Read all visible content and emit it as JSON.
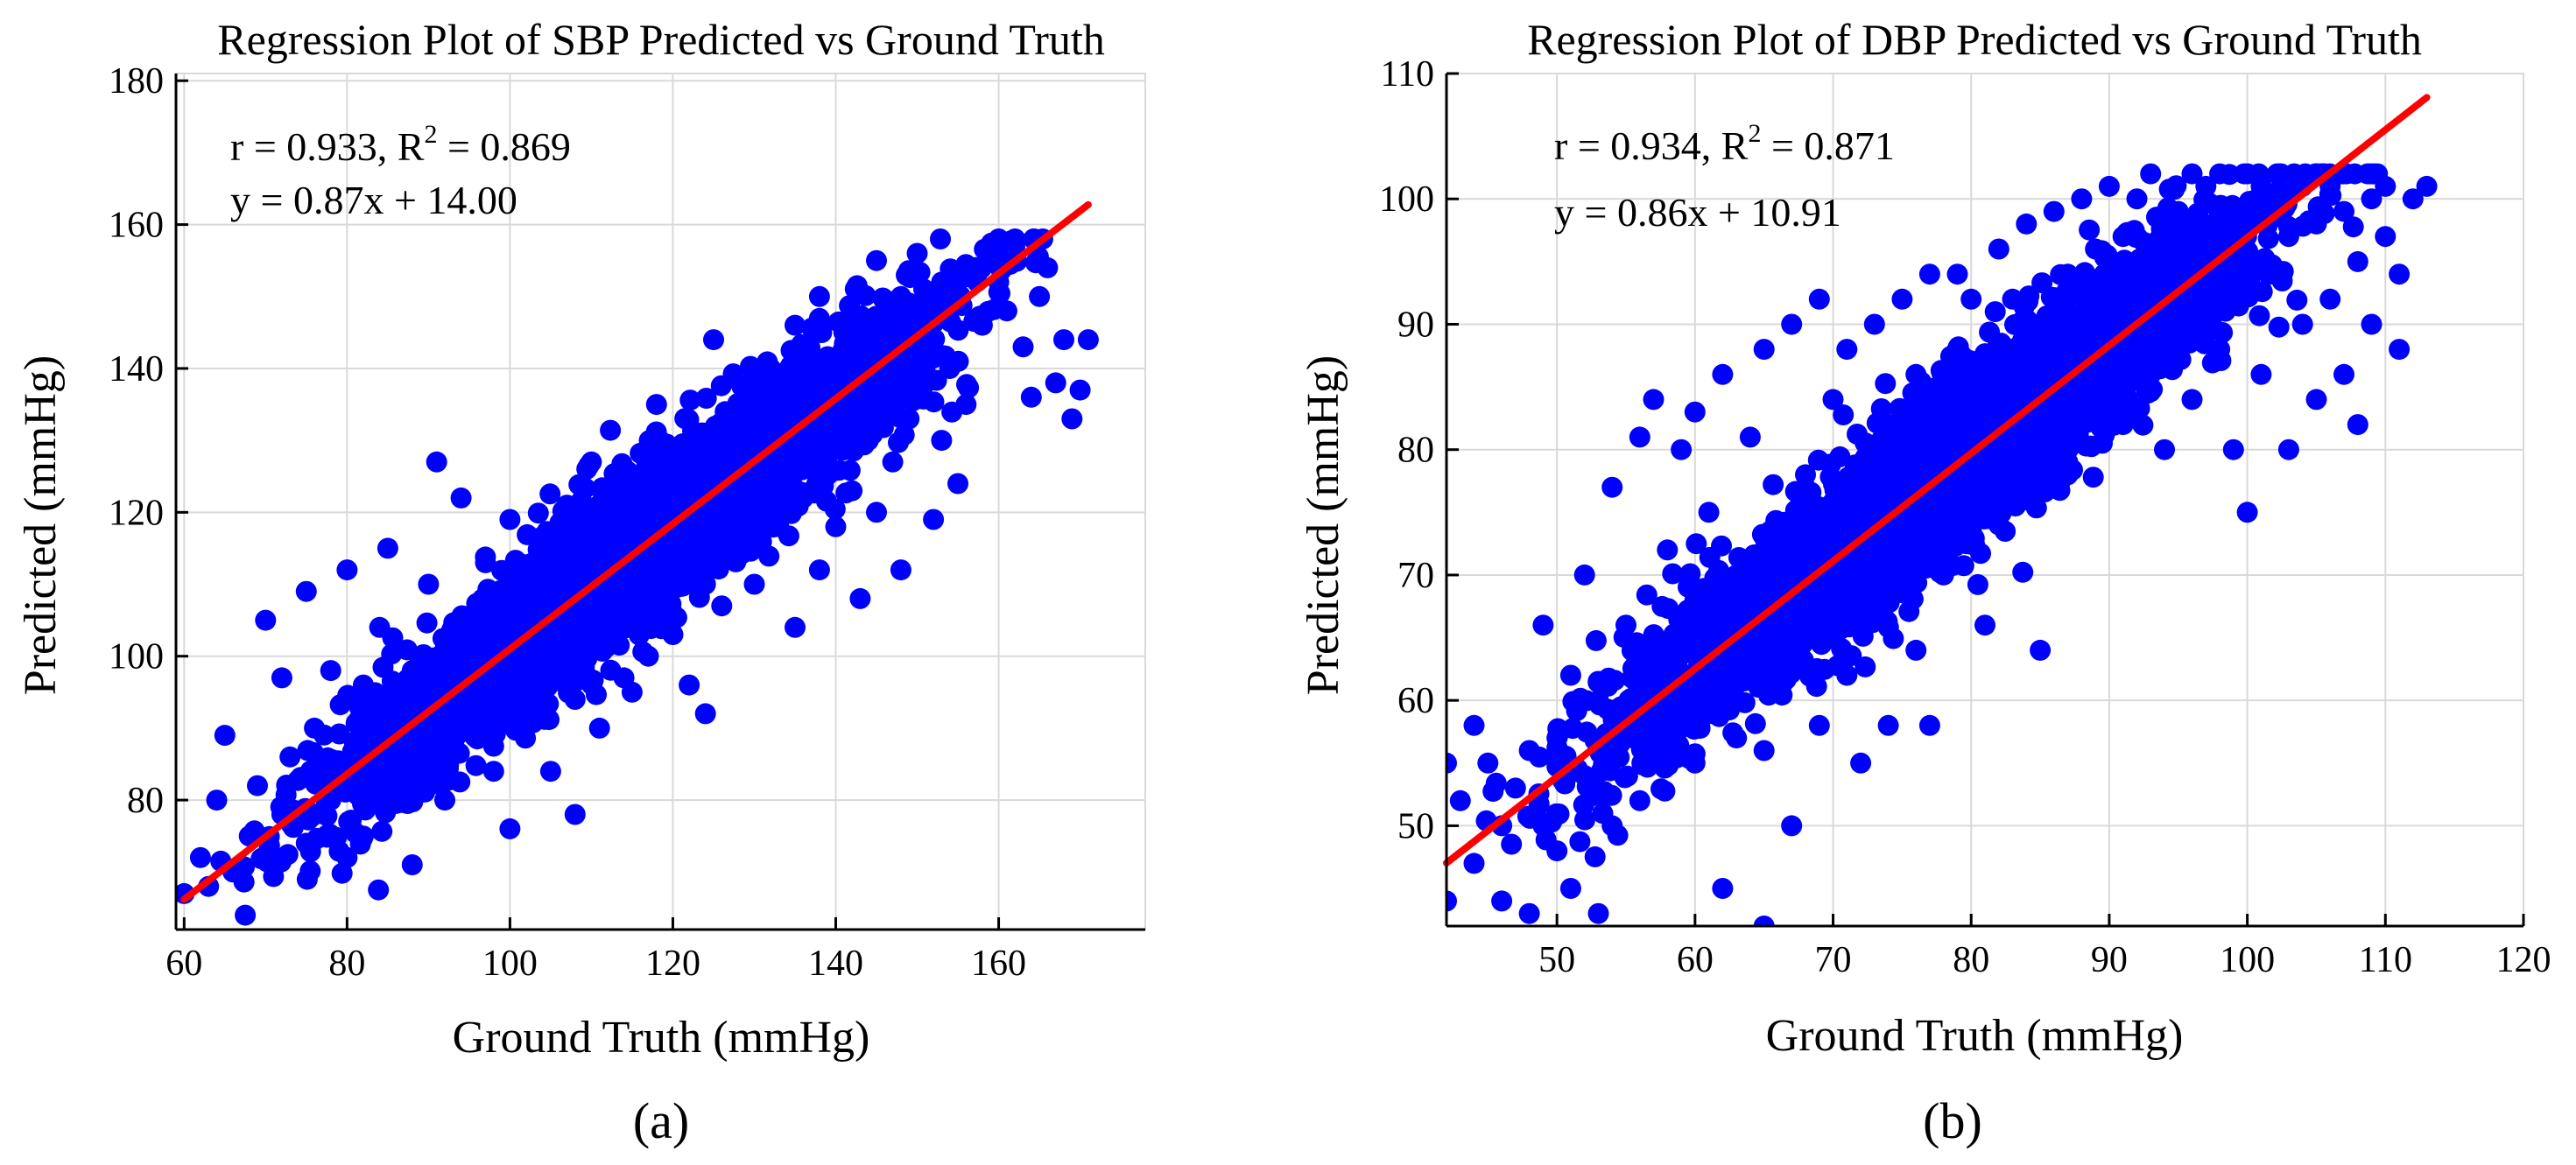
{
  "colors": {
    "points": "#0000ff",
    "fit_line": "#ff0000",
    "grid": "#d9d9d9",
    "axis": "#000000"
  },
  "chart_data": [
    {
      "type": "scatter",
      "panel_label": "(a)",
      "title": "Regression Plot of SBP Predicted vs Ground Truth",
      "xlabel": "Ground Truth (mmHg)",
      "ylabel": "Predicted (mmHg)",
      "xlim": [
        59,
        178
      ],
      "ylim": [
        62,
        181
      ],
      "xticks": [
        60,
        80,
        100,
        120,
        140,
        160
      ],
      "yticks": [
        80,
        100,
        120,
        140,
        160,
        180
      ],
      "grid": true,
      "stats": {
        "r_text": "r = 0.933, R",
        "r2_sup": "2",
        "r2_text": " = 0.869",
        "equation": "y = 0.87x + 14.00"
      },
      "fit": {
        "slope": 0.87,
        "intercept": 14.0,
        "x_range": [
          60,
          171
        ]
      },
      "point_cloud": {
        "x_range": [
          60,
          171
        ],
        "y_range": [
          64,
          158
        ],
        "approx_point_count": 15000,
        "note": "dense point cloud along the fit line"
      },
      "points": [
        [
          60,
          67
        ],
        [
          62,
          72
        ],
        [
          63,
          68
        ],
        [
          64,
          80
        ],
        [
          65,
          89
        ],
        [
          66,
          70
        ],
        [
          68,
          75
        ],
        [
          69,
          82
        ],
        [
          70,
          105
        ],
        [
          70,
          72
        ],
        [
          72,
          97
        ],
        [
          72,
          78
        ],
        [
          73,
          86
        ],
        [
          75,
          109
        ],
        [
          75,
          74
        ],
        [
          76,
          90
        ],
        [
          78,
          80
        ],
        [
          78,
          98
        ],
        [
          80,
          85
        ],
        [
          80,
          112
        ],
        [
          80,
          72
        ],
        [
          82,
          96
        ],
        [
          82,
          75
        ],
        [
          84,
          104
        ],
        [
          85,
          115
        ],
        [
          85,
          82
        ],
        [
          86,
          91
        ],
        [
          88,
          98
        ],
        [
          88,
          71
        ],
        [
          90,
          110
        ],
        [
          90,
          88
        ],
        [
          91,
          127
        ],
        [
          92,
          95
        ],
        [
          92,
          80
        ],
        [
          94,
          104
        ],
        [
          94,
          122
        ],
        [
          95,
          90
        ],
        [
          96,
          100
        ],
        [
          97,
          113
        ],
        [
          98,
          84
        ],
        [
          99,
          96
        ],
        [
          100,
          110
        ],
        [
          100,
          119
        ],
        [
          100,
          76
        ],
        [
          102,
          92
        ],
        [
          103,
          104
        ],
        [
          104,
          116
        ],
        [
          105,
          84
        ],
        [
          106,
          100
        ],
        [
          107,
          121
        ],
        [
          108,
          94
        ],
        [
          108,
          78
        ],
        [
          110,
          108
        ],
        [
          110,
          127
        ],
        [
          111,
          90
        ],
        [
          112,
          104
        ],
        [
          113,
          116
        ],
        [
          114,
          97
        ],
        [
          115,
          95
        ],
        [
          116,
          110
        ],
        [
          117,
          100
        ],
        [
          117,
          123
        ],
        [
          118,
          135
        ],
        [
          119,
          107
        ],
        [
          120,
          118
        ],
        [
          120,
          103
        ],
        [
          121,
          124
        ],
        [
          122,
          96
        ],
        [
          122,
          112
        ],
        [
          123,
          130
        ],
        [
          124,
          92
        ],
        [
          124,
          110
        ],
        [
          125,
          144
        ],
        [
          126,
          118
        ],
        [
          126,
          107
        ],
        [
          127,
          128
        ],
        [
          128,
          114
        ],
        [
          129,
          136
        ],
        [
          130,
          120
        ],
        [
          130,
          110
        ],
        [
          131,
          130
        ],
        [
          132,
          140
        ],
        [
          133,
          118
        ],
        [
          134,
          126
        ],
        [
          135,
          104
        ],
        [
          135,
          146
        ],
        [
          136,
          122
        ],
        [
          137,
          132
        ],
        [
          138,
          112
        ],
        [
          138,
          150
        ],
        [
          139,
          128
        ],
        [
          140,
          136
        ],
        [
          140,
          118
        ],
        [
          141,
          145
        ],
        [
          142,
          123
        ],
        [
          143,
          140
        ],
        [
          143,
          108
        ],
        [
          144,
          130
        ],
        [
          145,
          155
        ],
        [
          145,
          120
        ],
        [
          146,
          142
        ],
        [
          147,
          127
        ],
        [
          148,
          150
        ],
        [
          148,
          112
        ],
        [
          149,
          133
        ],
        [
          150,
          156
        ],
        [
          150,
          138
        ],
        [
          151,
          146
        ],
        [
          152,
          119
        ],
        [
          153,
          130
        ],
        [
          153,
          152
        ],
        [
          154,
          140
        ],
        [
          155,
          124
        ],
        [
          156,
          135
        ],
        [
          158,
          146
        ],
        [
          160,
          152
        ],
        [
          161,
          148
        ],
        [
          162,
          158
        ],
        [
          163,
          143
        ],
        [
          164,
          136
        ],
        [
          165,
          150
        ],
        [
          166,
          154
        ],
        [
          167,
          138
        ],
        [
          168,
          144
        ],
        [
          169,
          133
        ],
        [
          170,
          137
        ],
        [
          171,
          144
        ]
      ]
    },
    {
      "type": "scatter",
      "panel_label": "(b)",
      "title": "Regression Plot of DBP Predicted vs Ground Truth",
      "xlabel": "Ground Truth (mmHg)",
      "ylabel": "Predicted (mmHg)",
      "xlim": [
        42,
        120
      ],
      "ylim": [
        42,
        110
      ],
      "xticks": [
        50,
        60,
        70,
        80,
        90,
        100,
        110,
        120
      ],
      "yticks": [
        50,
        60,
        70,
        80,
        90,
        100,
        110
      ],
      "grid": true,
      "stats": {
        "r_text": "r = 0.934, R",
        "r2_sup": "2",
        "r2_text": " = 0.871",
        "equation": "y = 0.86x + 10.91"
      },
      "fit": {
        "slope": 0.86,
        "intercept": 10.91,
        "x_range": [
          42,
          113
        ]
      },
      "point_cloud": {
        "x_range": [
          42,
          113
        ],
        "y_range": [
          42,
          102
        ],
        "approx_point_count": 15000,
        "note": "dense point cloud along the fit line"
      },
      "points": [
        [
          42,
          44
        ],
        [
          42,
          55
        ],
        [
          43,
          52
        ],
        [
          44,
          58
        ],
        [
          44,
          47
        ],
        [
          45,
          55
        ],
        [
          46,
          50
        ],
        [
          46,
          44
        ],
        [
          47,
          53
        ],
        [
          48,
          56
        ],
        [
          48,
          43
        ],
        [
          49,
          66
        ],
        [
          49,
          50
        ],
        [
          50,
          57
        ],
        [
          50,
          48
        ],
        [
          51,
          62
        ],
        [
          51,
          45
        ],
        [
          52,
          70
        ],
        [
          52,
          54
        ],
        [
          53,
          43
        ],
        [
          53,
          60
        ],
        [
          54,
          77
        ],
        [
          54,
          50
        ],
        [
          55,
          66
        ],
        [
          55,
          58
        ],
        [
          56,
          81
        ],
        [
          56,
          52
        ],
        [
          57,
          84
        ],
        [
          57,
          64
        ],
        [
          58,
          56
        ],
        [
          58,
          72
        ],
        [
          59,
          80
        ],
        [
          59,
          60
        ],
        [
          60,
          83
        ],
        [
          60,
          68
        ],
        [
          60,
          55
        ],
        [
          61,
          75
        ],
        [
          61,
          62
        ],
        [
          62,
          86
        ],
        [
          62,
          45
        ],
        [
          63,
          70
        ],
        [
          63,
          57
        ],
        [
          64,
          81
        ],
        [
          64,
          64
        ],
        [
          65,
          88
        ],
        [
          65,
          56
        ],
        [
          65,
          42
        ],
        [
          66,
          74
        ],
        [
          66,
          62
        ],
        [
          67,
          90
        ],
        [
          67,
          50
        ],
        [
          68,
          78
        ],
        [
          68,
          66
        ],
        [
          69,
          92
        ],
        [
          69,
          58
        ],
        [
          70,
          84
        ],
        [
          70,
          70
        ],
        [
          71,
          62
        ],
        [
          71,
          88
        ],
        [
          72,
          76
        ],
        [
          72,
          55
        ],
        [
          73,
          90
        ],
        [
          73,
          68
        ],
        [
          74,
          82
        ],
        [
          74,
          58
        ],
        [
          75,
          92
        ],
        [
          75,
          72
        ],
        [
          76,
          86
        ],
        [
          76,
          64
        ],
        [
          77,
          94
        ],
        [
          77,
          58
        ],
        [
          78,
          80
        ],
        [
          78,
          70
        ],
        [
          79,
          94
        ],
        [
          79,
          88
        ],
        [
          80,
          76
        ],
        [
          80,
          92
        ],
        [
          81,
          84
        ],
        [
          81,
          66
        ],
        [
          82,
          96
        ],
        [
          82,
          74
        ],
        [
          83,
          88
        ],
        [
          83,
          92
        ],
        [
          84,
          80
        ],
        [
          84,
          98
        ],
        [
          85,
          64
        ],
        [
          85,
          90
        ],
        [
          86,
          86
        ],
        [
          86,
          99
        ],
        [
          87,
          78
        ],
        [
          87,
          94
        ],
        [
          88,
          100
        ],
        [
          88,
          88
        ],
        [
          89,
          84
        ],
        [
          89,
          96
        ],
        [
          90,
          101
        ],
        [
          90,
          90
        ],
        [
          91,
          82
        ],
        [
          91,
          97
        ],
        [
          92,
          93
        ],
        [
          92,
          100
        ],
        [
          93,
          86
        ],
        [
          93,
          102
        ],
        [
          94,
          95
        ],
        [
          94,
          80
        ],
        [
          95,
          99
        ],
        [
          95,
          90
        ],
        [
          96,
          102
        ],
        [
          96,
          84
        ],
        [
          97,
          96
        ],
        [
          97,
          101
        ],
        [
          98,
          88
        ],
        [
          98,
          102
        ],
        [
          99,
          93
        ],
        [
          99,
          80
        ],
        [
          100,
          98
        ],
        [
          100,
          75
        ],
        [
          101,
          101
        ],
        [
          101,
          86
        ],
        [
          102,
          94
        ],
        [
          102,
          100
        ],
        [
          103,
          80
        ],
        [
          103,
          97
        ],
        [
          104,
          101
        ],
        [
          104,
          90
        ],
        [
          105,
          84
        ],
        [
          105,
          98
        ],
        [
          106,
          101
        ],
        [
          106,
          92
        ],
        [
          107,
          86
        ],
        [
          107,
          99
        ],
        [
          108,
          82
        ],
        [
          108,
          95
        ],
        [
          109,
          100
        ],
        [
          109,
          90
        ],
        [
          110,
          97
        ],
        [
          110,
          101
        ],
        [
          111,
          88
        ],
        [
          111,
          94
        ],
        [
          112,
          100
        ],
        [
          113,
          101
        ]
      ]
    }
  ]
}
